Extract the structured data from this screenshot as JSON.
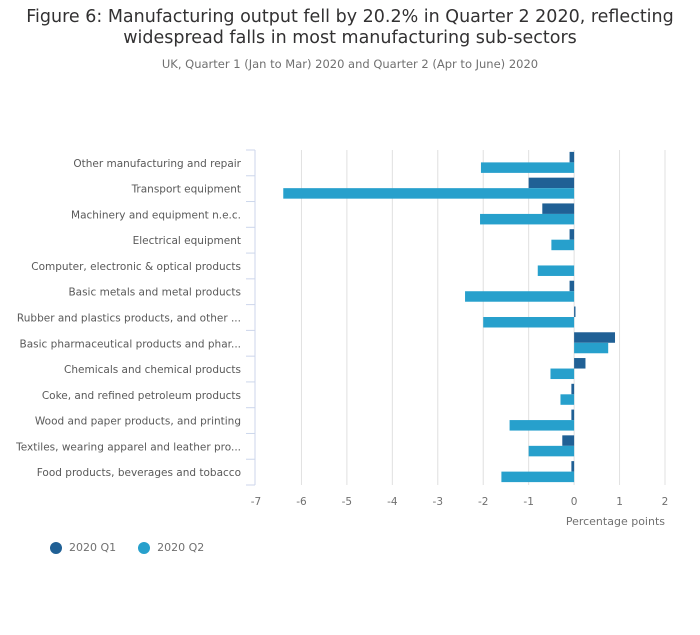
{
  "chart_data": {
    "type": "bar",
    "orientation": "horizontal",
    "title": "Figure 6: Manufacturing output fell by 20.2% in Quarter 2 2020, reflecting widespread falls in most manufacturing sub-sectors",
    "subtitle": "UK, Quarter 1 (Jan to Mar) 2020 and Quarter 2 (Apr to June) 2020",
    "xlabel": "Percentage points",
    "ylabel": "",
    "xlim": [
      -7,
      2
    ],
    "xticks": [
      -7,
      -6,
      -5,
      -4,
      -3,
      -2,
      -1,
      0,
      1,
      2
    ],
    "grid": true,
    "legend_position": "bottom-left",
    "categories": [
      "Other manufacturing and repair",
      "Transport equipment",
      "Machinery and equipment n.e.c.",
      "Electrical equipment",
      "Computer, electronic & optical products",
      "Basic metals and metal products",
      "Rubber and plastics products, and other ...",
      "Basic pharmaceutical products and phar...",
      "Chemicals and chemical products",
      "Coke, and refined petroleum products",
      "Wood and paper products, and printing",
      "Textiles, wearing apparel and leather pro...",
      "Food products, beverages and tobacco"
    ],
    "series": [
      {
        "name": "2020 Q1",
        "color": "#206095",
        "values": [
          -0.1,
          -1.0,
          -0.7,
          -0.1,
          0.0,
          -0.1,
          0.03,
          0.9,
          0.25,
          -0.06,
          -0.06,
          -0.26,
          -0.06
        ]
      },
      {
        "name": "2020 Q2",
        "color": "#27a0cc",
        "values": [
          -2.05,
          -6.4,
          -2.07,
          -0.5,
          -0.8,
          -2.4,
          -2.0,
          0.75,
          -0.52,
          -0.3,
          -1.42,
          -1.0,
          -1.6
        ]
      }
    ]
  }
}
